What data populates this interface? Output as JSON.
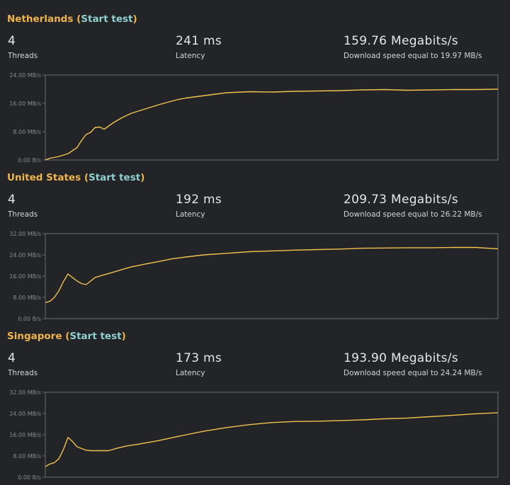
{
  "sections": [
    {
      "region": "Netherlands",
      "open_paren": "(",
      "action": "Start test",
      "close_paren": ")",
      "threads": "4",
      "threads_label": "Threads",
      "latency": "241 ms",
      "latency_label": "Latency",
      "speed": "159.76 Megabits/s",
      "speed_detail": "Download speed equal to 19.97 MB/s"
    },
    {
      "region": "United States",
      "open_paren": "(",
      "action": "Start test",
      "close_paren": ")",
      "threads": "4",
      "threads_label": "Threads",
      "latency": "192 ms",
      "latency_label": "Latency",
      "speed": "209.73 Megabits/s",
      "speed_detail": "Download speed equal to 26.22 MB/s"
    },
    {
      "region": "Singapore",
      "open_paren": "(",
      "action": "Start test",
      "close_paren": ")",
      "threads": "4",
      "threads_label": "Threads",
      "latency": "173 ms",
      "latency_label": "Latency",
      "speed": "193.90 Megabits/s",
      "speed_detail": "Download speed equal to 24.24 MB/s"
    }
  ],
  "colors": {
    "line": "#f2c14e",
    "title": "#f0b44c",
    "link": "#8fd0cf",
    "frame": "#6b6b6b",
    "background": "#222427"
  },
  "chart_data": [
    {
      "type": "line",
      "title": "",
      "xlabel": "",
      "ylabel": "",
      "ylim": [
        0,
        24
      ],
      "yticks": [
        0,
        8,
        16,
        24
      ],
      "ytick_labels": [
        "0.00 B/s",
        "8.00 MB/s",
        "16.00 MB/s",
        "24.00 MB/s"
      ],
      "grid": false,
      "series": [
        {
          "x": [
            0,
            1,
            3,
            5,
            7,
            8,
            9,
            10,
            11,
            12,
            13,
            15,
            17,
            19,
            21,
            23,
            25,
            27,
            29,
            31,
            34,
            37,
            40,
            45,
            50,
            55,
            60,
            65,
            70,
            75,
            80,
            85,
            90,
            95,
            100
          ],
          "y": [
            0,
            0.5,
            1,
            1.8,
            3.5,
            5.5,
            7.2,
            7.8,
            9.2,
            9.3,
            8.7,
            10.5,
            12,
            13.2,
            14,
            14.8,
            15.6,
            16.3,
            17,
            17.5,
            18,
            18.5,
            19,
            19.3,
            19.2,
            19.4,
            19.5,
            19.6,
            19.8,
            19.9,
            19.7,
            19.8,
            19.9,
            19.9,
            20
          ]
        }
      ]
    },
    {
      "type": "line",
      "title": "",
      "xlabel": "",
      "ylabel": "",
      "ylim": [
        0,
        32
      ],
      "yticks": [
        0,
        8,
        16,
        24,
        32
      ],
      "ytick_labels": [
        "0.00 B/s",
        "8.00 MB/s",
        "16.00 MB/s",
        "24.00 MB/s",
        "32.00 MB/s"
      ],
      "grid": false,
      "series": [
        {
          "x": [
            0,
            1,
            2,
            3,
            4,
            5,
            6,
            7,
            8,
            9,
            11,
            13,
            15,
            17,
            19,
            22,
            25,
            28,
            31,
            35,
            40,
            45,
            50,
            55,
            60,
            65,
            70,
            75,
            80,
            85,
            90,
            95,
            100
          ],
          "y": [
            6,
            6.5,
            8,
            10.5,
            14,
            16.8,
            15.5,
            14.2,
            13.2,
            12.8,
            15.5,
            16.5,
            17.5,
            18.5,
            19.5,
            20.5,
            21.5,
            22.5,
            23.2,
            24,
            24.6,
            25.2,
            25.5,
            25.8,
            26,
            26.2,
            26.5,
            26.6,
            26.7,
            26.7,
            26.8,
            26.8,
            26.3
          ]
        }
      ]
    },
    {
      "type": "line",
      "title": "",
      "xlabel": "",
      "ylabel": "",
      "ylim": [
        0,
        32
      ],
      "yticks": [
        0,
        8,
        16,
        24,
        32
      ],
      "ytick_labels": [
        "0.00 B/s",
        "8.00 MB/s",
        "16.00 MB/s",
        "24.00 MB/s",
        "32.00 MB/s"
      ],
      "grid": false,
      "series": [
        {
          "x": [
            0,
            1,
            2,
            3,
            4,
            5,
            6,
            7,
            8,
            9,
            10,
            12,
            14,
            16,
            18,
            20,
            25,
            30,
            35,
            40,
            45,
            50,
            55,
            60,
            65,
            70,
            75,
            80,
            85,
            90,
            95,
            100
          ],
          "y": [
            4,
            5,
            5.5,
            7,
            10.5,
            15,
            13.5,
            11.5,
            10.8,
            10.2,
            10,
            10,
            10,
            11,
            11.8,
            12.3,
            13.8,
            15.6,
            17.3,
            18.7,
            19.8,
            20.6,
            21,
            21.1,
            21.3,
            21.6,
            22,
            22.3,
            22.8,
            23.3,
            23.9,
            24.3
          ]
        }
      ]
    }
  ]
}
